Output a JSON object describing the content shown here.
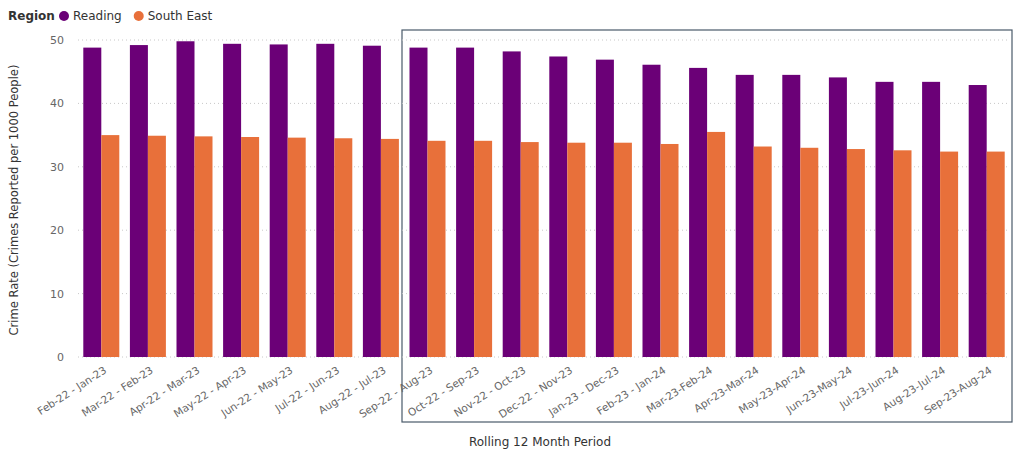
{
  "chart_data": {
    "type": "bar",
    "legend_title": "Region",
    "x_label": "Rolling 12 Month Period",
    "y_label": "Crime Rate (Crimes Reported per 1000 People)",
    "categories": [
      "Feb-22 - Jan-23",
      "Mar-22 - Feb-23",
      "Apr-22 - Mar-23",
      "May-22 - Apr-23",
      "Jun-22 - May-23",
      "Jul-22 - Jun-23",
      "Aug-22 - Jul-23",
      "Sep-22 - Aug-23",
      "Oct-22 - Sep-23",
      "Nov-22 - Oct-23",
      "Dec-22 - Nov-23",
      "Jan-23 - Dec-23",
      "Feb-23 - Jan-24",
      "Mar-23-Feb-24",
      "Apr-23-Mar-24",
      "May-23-Apr-24",
      "Jun-23-May-24",
      "Jul-23-Jun-24",
      "Aug-23-Jul-24",
      "Sep-23-Aug-24"
    ],
    "series": [
      {
        "name": "Reading",
        "color": "#6b0077",
        "values": [
          48.8,
          49.2,
          49.8,
          49.4,
          49.3,
          49.4,
          49.1,
          48.8,
          48.8,
          48.2,
          47.4,
          46.9,
          46.1,
          45.6,
          44.5,
          44.5,
          44.1,
          43.4,
          43.4,
          42.9
        ]
      },
      {
        "name": "South East",
        "color": "#e8703a",
        "values": [
          35.0,
          34.9,
          34.8,
          34.7,
          34.6,
          34.5,
          34.4,
          34.1,
          34.1,
          33.9,
          33.8,
          33.8,
          33.6,
          35.5,
          33.2,
          33.0,
          32.8,
          32.6,
          32.4,
          32.4
        ]
      }
    ],
    "ylim": [
      0,
      50
    ],
    "yticks": [
      0,
      10,
      20,
      30,
      40,
      50
    ],
    "grid": true,
    "legend": "top-left"
  }
}
